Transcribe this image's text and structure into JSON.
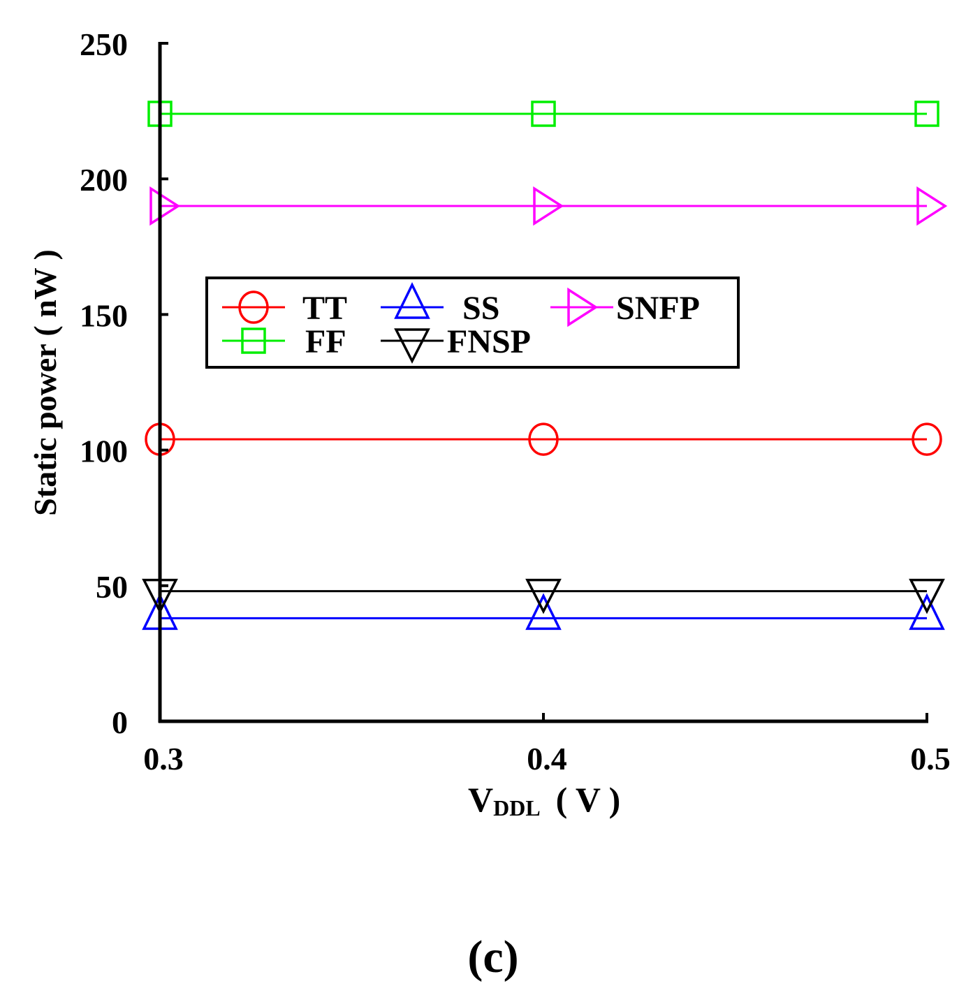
{
  "chart_data": {
    "type": "line",
    "title": "",
    "xlabel": {
      "main": "V",
      "subscript": "DDL",
      "unit": "( V )"
    },
    "ylabel": "Static power ( nW )",
    "x": [
      0.3,
      0.4,
      0.5
    ],
    "x_tick_labels": [
      "0.3",
      "0.4",
      "0.5"
    ],
    "xlim": [
      0.3,
      0.5
    ],
    "ylim": [
      0,
      250
    ],
    "y_ticks": [
      0,
      50,
      100,
      150,
      200,
      250
    ],
    "y_tick_labels": [
      "0",
      "50",
      "100",
      "150",
      "200",
      "250"
    ],
    "grid": false,
    "legend_placement": "center-left",
    "series": [
      {
        "name": "TT",
        "values": [
          104,
          104,
          104
        ],
        "color": "#ff0000",
        "marker": "circle"
      },
      {
        "name": "SS",
        "values": [
          38,
          38,
          38
        ],
        "color": "#0000ff",
        "marker": "triangle-up"
      },
      {
        "name": "SNFP",
        "values": [
          190,
          190,
          190
        ],
        "color": "#ff00ff",
        "marker": "triangle-right"
      },
      {
        "name": "FF",
        "values": [
          224,
          224,
          224
        ],
        "color": "#00ee00",
        "marker": "square"
      },
      {
        "name": "FNSP",
        "values": [
          48,
          48,
          48
        ],
        "color": "#000000",
        "marker": "triangle-down"
      }
    ]
  },
  "caption": "(c)"
}
